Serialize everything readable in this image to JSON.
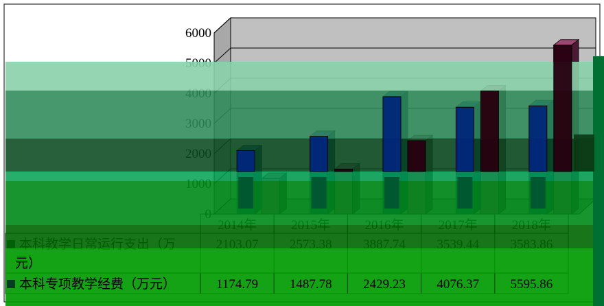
{
  "chart_data": {
    "type": "bar",
    "title": "",
    "xlabel": "",
    "ylabel": "",
    "ylim": [
      0,
      6000
    ],
    "yticks": [
      0,
      1000,
      2000,
      3000,
      4000,
      5000,
      6000
    ],
    "grid": true,
    "legend": "table-left",
    "categories": [
      "2014年",
      "2015年",
      "2016年",
      "2017年",
      "2018年"
    ],
    "series": [
      {
        "name": "",
        "label_lines": [
          "本科教学日常运行支出（万",
          "元）"
        ],
        "values": [
          2103.07,
          2573.38,
          3887.74,
          3539.44,
          3583.86
        ],
        "value_labels": [
          "2103.07",
          "2573.38",
          "3887.74",
          "3539.44",
          "3583.86"
        ],
        "color": "#003399",
        "color_dark": "#001a55",
        "marker_color": "#00335f"
      },
      {
        "name": "本科专项教学经费（万元）",
        "label_lines": [
          "本科专项教学经费（万元）"
        ],
        "values": [
          1174.79,
          1487.78,
          2429.23,
          4076.37,
          5595.86
        ],
        "value_labels": [
          "1174.79",
          "1487.78",
          "2429.23",
          "4076.37",
          "5595.86"
        ],
        "color": "#993366",
        "color_dark": "#4d1a33",
        "marker_color": "#004020"
      }
    ],
    "colors": {
      "wall": "#c0c0c0",
      "overlay_band_1": "#8ad0a8",
      "overlay_band_2": "#2e8a58",
      "overlay_band_3": "#006f32",
      "table_green": "#009b00"
    }
  }
}
